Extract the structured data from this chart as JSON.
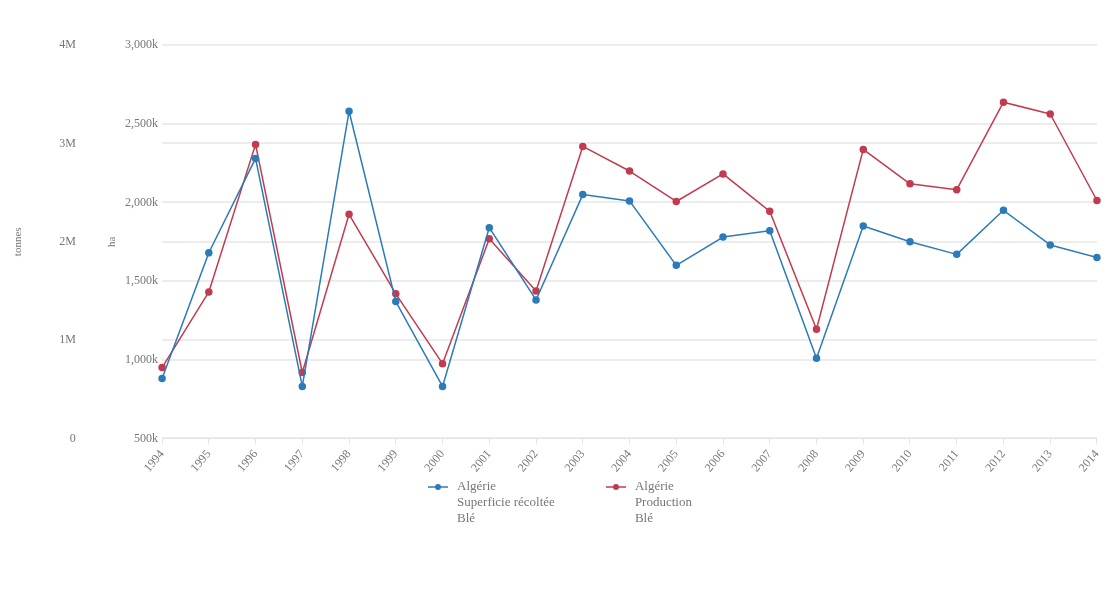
{
  "chart_data": {
    "type": "line",
    "xlabel": null,
    "ylabel": "ha",
    "y2label": "tonnes",
    "categories": [
      "1994",
      "1995",
      "1996",
      "1997",
      "1998",
      "1999",
      "2000",
      "2001",
      "2002",
      "2003",
      "2004",
      "2005",
      "2006",
      "2007",
      "2008",
      "2009",
      "2010",
      "2011",
      "2012",
      "2013",
      "2014"
    ],
    "series": [
      {
        "name": "Algérie\nSuperficie récoltée\nBlé",
        "color": "#2b7bb9",
        "values": [
          880000,
          1680000,
          2280000,
          830000,
          2580000,
          1370000,
          830000,
          1840000,
          1380000,
          2050000,
          2010000,
          1600000,
          1780000,
          1820000,
          1010000,
          1850000,
          1750000,
          1670000,
          1950000,
          1730000,
          1650000
        ]
      },
      {
        "name": "Algérie\nProduction\nBlé",
        "color": "#c23b4e",
        "axis": "y2",
        "values": [
          720000,
          1490000,
          2990000,
          670000,
          2280000,
          1470000,
          760000,
          2030000,
          1500000,
          2970000,
          2720000,
          2410000,
          2690000,
          2310000,
          1110000,
          2940000,
          2590000,
          2530000,
          3420000,
          3300000,
          2420000
        ]
      }
    ],
    "ylim": [
      500000,
      3000000
    ],
    "yticks": [
      {
        "value": 500000,
        "label": "500k"
      },
      {
        "value": 1000000,
        "label": "1,000k"
      },
      {
        "value": 1500000,
        "label": "1,500k"
      },
      {
        "value": 2000000,
        "label": "2,000k"
      },
      {
        "value": 2500000,
        "label": "2,500k"
      },
      {
        "value": 3000000,
        "label": "3,000k"
      }
    ],
    "y2lim": [
      0,
      4000000
    ],
    "y2ticks": [
      0,
      {
        "value": 1000000,
        "label": "1M"
      },
      {
        "value": 2000000,
        "label": "2M"
      },
      {
        "value": 3000000,
        "label": "3M"
      },
      {
        "value": 4000000,
        "label": "4M"
      }
    ],
    "grid": "y",
    "legend": "bottom",
    "marker": "circle",
    "line_style": "solid"
  }
}
